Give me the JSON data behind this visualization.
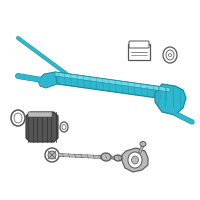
{
  "bg_color": "#ffffff",
  "teal": "#2db8d0",
  "teal_dark": "#1a8a9a",
  "teal_light": "#6dd8e8",
  "grey": "#999999",
  "grey_light": "#bbbbbb",
  "grey_dark": "#555555",
  "grey_vdark": "#333333",
  "black": "#111111",
  "white": "#ffffff",
  "figsize": [
    2.0,
    2.0
  ],
  "dpi": 100
}
